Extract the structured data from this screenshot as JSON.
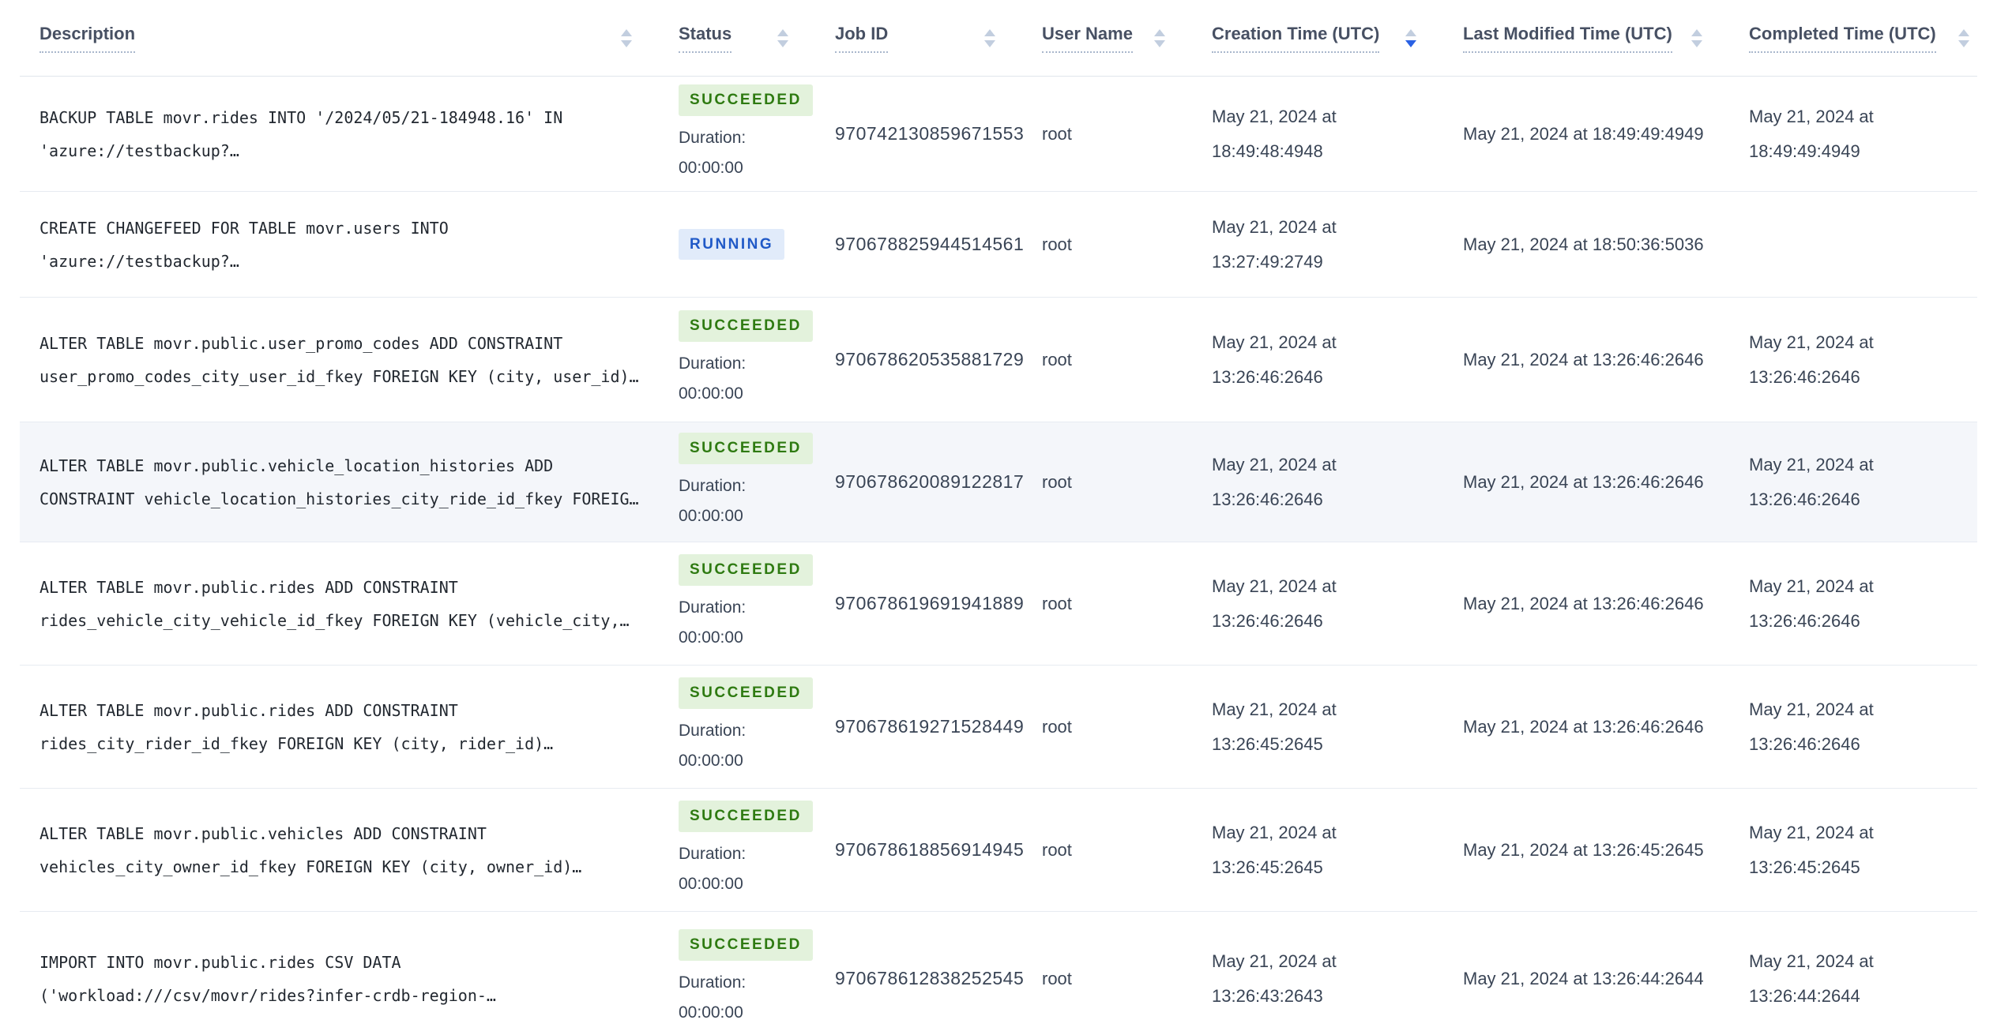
{
  "colors": {
    "sort_active": "#2a61e4",
    "succeeded_bg": "#e3f2dc",
    "succeeded_fg": "#2e7a11",
    "running_bg": "#e1ebfa",
    "running_fg": "#2059c7",
    "row_highlight": "#f4f6fa"
  },
  "table": {
    "columns": [
      {
        "label": "Description",
        "sort": "none"
      },
      {
        "label": "Status",
        "sort": "none"
      },
      {
        "label": "Job ID",
        "sort": "none"
      },
      {
        "label": "User Name",
        "sort": "none"
      },
      {
        "label": "Creation Time (UTC)",
        "sort": "desc"
      },
      {
        "label": "Last Modified Time (UTC)",
        "sort": "none"
      },
      {
        "label": "Completed Time (UTC)",
        "sort": "none"
      }
    ],
    "rows": [
      {
        "description": "BACKUP TABLE movr.rides INTO '/2024/05/21-184948.16' IN 'azure://testbackup?…",
        "status": "SUCCEEDED",
        "duration_label": "Duration:",
        "duration": "00:00:00",
        "job_id": "970742130859671553",
        "user_name": "root",
        "creation_time": "May 21, 2024 at 18:49:48:4948",
        "last_modified_time": "May 21, 2024 at 18:49:49:4949",
        "completed_time": "May 21, 2024 at 18:49:49:4949",
        "highlighted": false,
        "min_height": 146
      },
      {
        "description": "CREATE CHANGEFEED FOR TABLE movr.users INTO 'azure://testbackup?…",
        "status": "RUNNING",
        "duration_label": null,
        "duration": null,
        "job_id": "970678825944514561",
        "user_name": "root",
        "creation_time": "May 21, 2024 at 13:27:49:2749",
        "last_modified_time": "May 21, 2024 at 18:50:36:5036",
        "completed_time": "",
        "highlighted": false,
        "min_height": 134
      },
      {
        "description": "ALTER TABLE movr.public.user_promo_codes ADD CONSTRAINT user_promo_codes_city_user_id_fkey FOREIGN KEY (city, user_id)…",
        "status": "SUCCEEDED",
        "duration_label": "Duration:",
        "duration": "00:00:00",
        "job_id": "970678620535881729",
        "user_name": "root",
        "creation_time": "May 21, 2024 at 13:26:46:2646",
        "last_modified_time": "May 21, 2024 at 13:26:46:2646",
        "completed_time": "May 21, 2024 at 13:26:46:2646",
        "highlighted": false,
        "min_height": 158
      },
      {
        "description": "ALTER TABLE movr.public.vehicle_location_histories ADD CONSTRAINT vehicle_location_histories_city_ride_id_fkey FOREIG…",
        "status": "SUCCEEDED",
        "duration_label": "Duration:",
        "duration": "00:00:00",
        "job_id": "970678620089122817",
        "user_name": "root",
        "creation_time": "May 21, 2024 at 13:26:46:2646",
        "last_modified_time": "May 21, 2024 at 13:26:46:2646",
        "completed_time": "May 21, 2024 at 13:26:46:2646",
        "highlighted": true,
        "min_height": 152
      },
      {
        "description": "ALTER TABLE movr.public.rides ADD CONSTRAINT rides_vehicle_city_vehicle_id_fkey FOREIGN KEY (vehicle_city,…",
        "status": "SUCCEEDED",
        "duration_label": "Duration:",
        "duration": "00:00:00",
        "job_id": "970678619691941889",
        "user_name": "root",
        "creation_time": "May 21, 2024 at 13:26:46:2646",
        "last_modified_time": "May 21, 2024 at 13:26:46:2646",
        "completed_time": "May 21, 2024 at 13:26:46:2646",
        "highlighted": false,
        "min_height": 156
      },
      {
        "description": "ALTER TABLE movr.public.rides ADD CONSTRAINT rides_city_rider_id_fkey FOREIGN KEY (city, rider_id)…",
        "status": "SUCCEEDED",
        "duration_label": "Duration:",
        "duration": "00:00:00",
        "job_id": "970678619271528449",
        "user_name": "root",
        "creation_time": "May 21, 2024 at 13:26:45:2645",
        "last_modified_time": "May 21, 2024 at 13:26:46:2646",
        "completed_time": "May 21, 2024 at 13:26:46:2646",
        "highlighted": false,
        "min_height": 156
      },
      {
        "description": "ALTER TABLE movr.public.vehicles ADD CONSTRAINT vehicles_city_owner_id_fkey FOREIGN KEY (city, owner_id)…",
        "status": "SUCCEEDED",
        "duration_label": "Duration:",
        "duration": "00:00:00",
        "job_id": "970678618856914945",
        "user_name": "root",
        "creation_time": "May 21, 2024 at 13:26:45:2645",
        "last_modified_time": "May 21, 2024 at 13:26:45:2645",
        "completed_time": "May 21, 2024 at 13:26:45:2645",
        "highlighted": false,
        "min_height": 156
      },
      {
        "description": "IMPORT INTO movr.public.rides CSV DATA ('workload:///csv/movr/rides?infer-crdb-region-…",
        "status": "SUCCEEDED",
        "duration_label": "Duration:",
        "duration": "00:00:00",
        "job_id": "970678612838252545",
        "user_name": "root",
        "creation_time": "May 21, 2024 at 13:26:43:2643",
        "last_modified_time": "May 21, 2024 at 13:26:44:2644",
        "completed_time": "May 21, 2024 at 13:26:44:2644",
        "highlighted": false,
        "min_height": 170
      }
    ]
  }
}
